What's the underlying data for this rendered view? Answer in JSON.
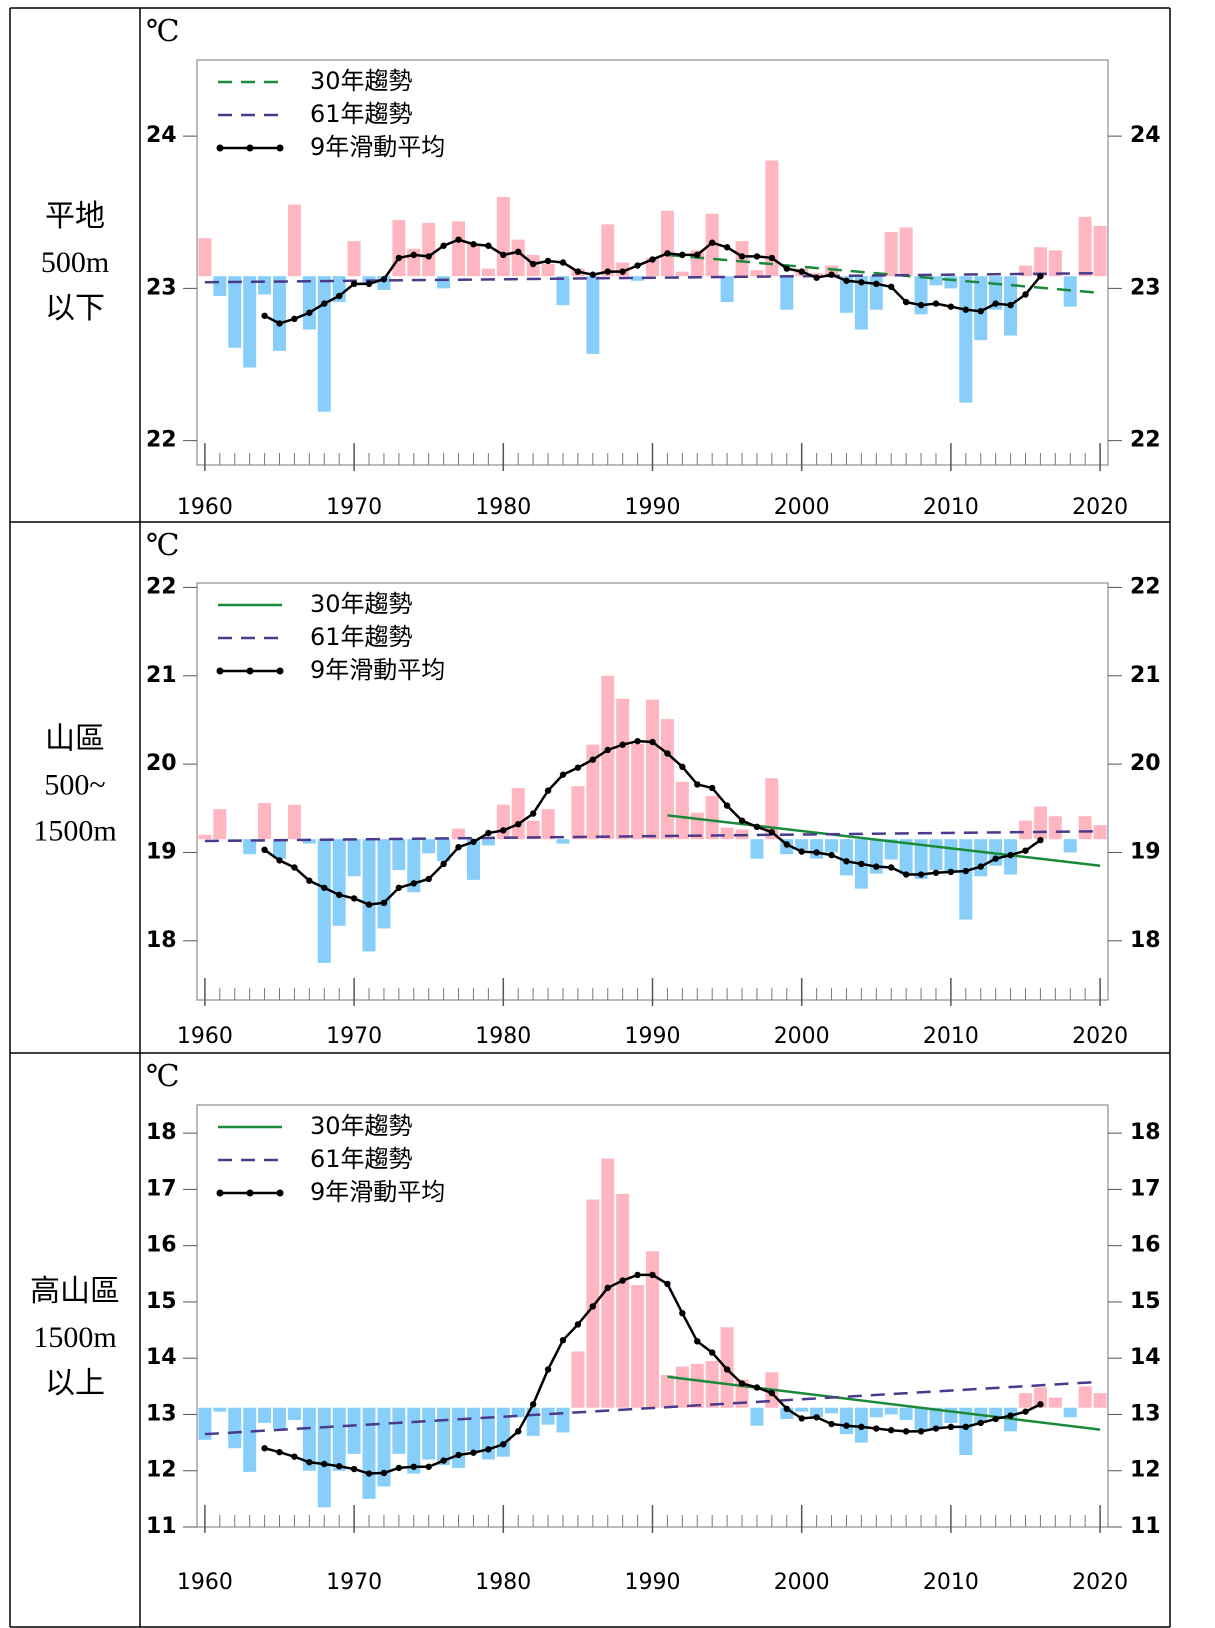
{
  "chart_data": [
    {
      "type": "bar",
      "unit": "℃",
      "row_label": [
        "平地",
        "500m",
        "以下"
      ],
      "x": [
        1960,
        1961,
        1962,
        1963,
        1964,
        1965,
        1966,
        1967,
        1968,
        1969,
        1970,
        1971,
        1972,
        1973,
        1974,
        1975,
        1976,
        1977,
        1978,
        1979,
        1980,
        1981,
        1982,
        1983,
        1984,
        1985,
        1986,
        1987,
        1988,
        1989,
        1990,
        1991,
        1992,
        1993,
        1994,
        1995,
        1996,
        1997,
        1998,
        1999,
        2000,
        2001,
        2002,
        2003,
        2004,
        2005,
        2006,
        2007,
        2008,
        2009,
        2010,
        2011,
        2012,
        2013,
        2014,
        2015,
        2016,
        2017,
        2018,
        2019,
        2020
      ],
      "values": [
        23.33,
        22.95,
        22.61,
        22.48,
        22.96,
        22.59,
        23.55,
        22.73,
        22.19,
        22.91,
        23.31,
        23.03,
        22.99,
        23.45,
        23.26,
        23.43,
        23.0,
        23.44,
        23.29,
        23.13,
        23.6,
        23.32,
        23.22,
        23.16,
        22.89,
        23.13,
        22.57,
        23.42,
        23.17,
        23.05,
        23.2,
        23.51,
        23.11,
        23.25,
        23.49,
        22.91,
        23.31,
        23.12,
        23.84,
        22.86,
        23.13,
        23.1,
        23.15,
        22.84,
        22.73,
        22.86,
        23.37,
        23.4,
        22.83,
        23.02,
        23.0,
        22.25,
        22.66,
        22.86,
        22.69,
        23.15,
        23.27,
        23.25,
        22.88,
        23.47,
        23.41
      ],
      "bar_base": 23.08,
      "color_above": "#ffb6c1",
      "color_below": "#87cefa",
      "xlim": [
        1959.47,
        2020.53
      ],
      "xticks": [
        1960,
        1970,
        1980,
        1990,
        2000,
        2010,
        2020
      ],
      "ylim": [
        21.84,
        24.5
      ],
      "yticks": [
        22,
        23,
        24
      ],
      "series": [
        {
          "name": "30年趨勢",
          "color": "#1a8a3a",
          "dashed": true,
          "x": [
            1991,
            2020
          ],
          "values": [
            23.22,
            22.97
          ]
        },
        {
          "name": "61年趨勢",
          "color": "#4a3a8c",
          "dashed": true,
          "x": [
            1960,
            2020
          ],
          "values": [
            23.04,
            23.1
          ]
        },
        {
          "name": "9年滑動平均",
          "color": "#000000",
          "markers": true,
          "values": [
            null,
            null,
            null,
            null,
            22.82,
            22.77,
            22.8,
            22.84,
            22.9,
            22.95,
            23.03,
            23.03,
            23.06,
            23.2,
            23.22,
            23.21,
            23.28,
            23.32,
            23.29,
            23.28,
            23.22,
            23.24,
            23.16,
            23.18,
            23.17,
            23.11,
            23.09,
            23.11,
            23.11,
            23.15,
            23.19,
            23.23,
            23.22,
            23.22,
            23.3,
            23.27,
            23.21,
            23.21,
            23.2,
            23.13,
            23.11,
            23.07,
            23.09,
            23.05,
            23.04,
            23.03,
            23.01,
            22.91,
            22.89,
            22.9,
            22.88,
            22.86,
            22.85,
            22.9,
            22.89,
            22.96,
            23.08,
            null,
            null,
            null,
            null
          ]
        }
      ]
    },
    {
      "type": "bar",
      "unit": "℃",
      "row_label": [
        "山區",
        "500~",
        "1500m"
      ],
      "x": [
        1960,
        1961,
        1962,
        1963,
        1964,
        1965,
        1966,
        1967,
        1968,
        1969,
        1970,
        1971,
        1972,
        1973,
        1974,
        1975,
        1976,
        1977,
        1978,
        1979,
        1980,
        1981,
        1982,
        1983,
        1984,
        1985,
        1986,
        1987,
        1988,
        1989,
        1990,
        1991,
        1992,
        1993,
        1994,
        1995,
        1996,
        1997,
        1998,
        1999,
        2000,
        2001,
        2002,
        2003,
        2004,
        2005,
        2006,
        2007,
        2008,
        2009,
        2010,
        2011,
        2012,
        2013,
        2014,
        2015,
        2016,
        2017,
        2018,
        2019,
        2020
      ],
      "values": [
        19.2,
        19.49,
        19.12,
        18.98,
        19.56,
        18.93,
        19.54,
        19.1,
        17.75,
        18.17,
        18.73,
        17.88,
        18.14,
        18.8,
        18.55,
        18.99,
        18.9,
        19.27,
        18.69,
        19.08,
        19.54,
        19.73,
        19.36,
        19.49,
        19.1,
        19.75,
        20.22,
        21.0,
        20.74,
        20.23,
        20.73,
        20.51,
        19.8,
        19.45,
        19.64,
        19.28,
        19.26,
        18.93,
        19.84,
        18.98,
        19.03,
        18.93,
        19.0,
        18.74,
        18.59,
        18.76,
        18.92,
        18.75,
        18.7,
        18.8,
        18.78,
        18.24,
        18.73,
        18.85,
        18.75,
        19.36,
        19.52,
        19.41,
        19.0,
        19.41,
        19.31
      ],
      "bar_base": 19.15,
      "color_above": "#ffb6c1",
      "color_below": "#87cefa",
      "xlim": [
        1959.47,
        2020.53
      ],
      "xticks": [
        1960,
        1970,
        1980,
        1990,
        2000,
        2010,
        2020
      ],
      "ylim": [
        17.33,
        22.05
      ],
      "yticks": [
        18,
        19,
        20,
        21,
        22
      ],
      "series": [
        {
          "name": "30年趨勢",
          "color": "#1a8a3a",
          "dashed": false,
          "x": [
            1991,
            2020
          ],
          "values": [
            19.42,
            18.85
          ]
        },
        {
          "name": "61年趨勢",
          "color": "#4a3a8c",
          "dashed": true,
          "x": [
            1960,
            2020
          ],
          "values": [
            19.13,
            19.24
          ]
        },
        {
          "name": "9年滑動平均",
          "color": "#000000",
          "markers": true,
          "values": [
            null,
            null,
            null,
            null,
            19.03,
            18.91,
            18.83,
            18.68,
            18.6,
            18.52,
            18.48,
            18.41,
            18.43,
            18.6,
            18.65,
            18.7,
            18.87,
            19.06,
            19.12,
            19.22,
            19.25,
            19.32,
            19.44,
            19.7,
            19.88,
            19.96,
            20.05,
            20.16,
            20.22,
            20.26,
            20.25,
            20.12,
            19.97,
            19.77,
            19.73,
            19.53,
            19.36,
            19.29,
            19.23,
            19.09,
            19.01,
            19.0,
            18.97,
            18.9,
            18.87,
            18.84,
            18.83,
            18.75,
            18.75,
            18.77,
            18.78,
            18.79,
            18.84,
            18.93,
            18.97,
            19.02,
            19.14,
            null,
            null,
            null,
            null
          ]
        }
      ]
    },
    {
      "type": "bar",
      "unit": "℃",
      "row_label": [
        "高山區",
        "1500m",
        "以上"
      ],
      "x": [
        1960,
        1961,
        1962,
        1963,
        1964,
        1965,
        1966,
        1967,
        1968,
        1969,
        1970,
        1971,
        1972,
        1973,
        1974,
        1975,
        1976,
        1977,
        1978,
        1979,
        1980,
        1981,
        1982,
        1983,
        1984,
        1985,
        1986,
        1987,
        1988,
        1989,
        1990,
        1991,
        1992,
        1993,
        1994,
        1995,
        1996,
        1997,
        1998,
        1999,
        2000,
        2001,
        2002,
        2003,
        2004,
        2005,
        2006,
        2007,
        2008,
        2009,
        2010,
        2011,
        2012,
        2013,
        2014,
        2015,
        2016,
        2017,
        2018,
        2019,
        2020
      ],
      "values": [
        12.55,
        13.05,
        12.4,
        11.98,
        12.85,
        12.75,
        12.9,
        12.0,
        11.35,
        12.0,
        12.3,
        11.5,
        11.72,
        12.3,
        11.95,
        12.2,
        12.1,
        12.05,
        12.35,
        12.2,
        12.25,
        12.95,
        12.62,
        12.82,
        12.68,
        14.12,
        16.82,
        17.55,
        16.92,
        15.3,
        15.9,
        13.7,
        13.85,
        13.9,
        13.95,
        14.55,
        13.62,
        12.8,
        13.75,
        12.92,
        13.05,
        12.95,
        13.02,
        12.65,
        12.5,
        12.95,
        13.0,
        12.9,
        12.7,
        12.75,
        12.85,
        12.28,
        12.85,
        12.95,
        12.7,
        13.38,
        13.48,
        13.3,
        12.95,
        13.5,
        13.38
      ],
      "bar_base": 13.12,
      "color_above": "#ffb6c1",
      "color_below": "#87cefa",
      "xlim": [
        1959.47,
        2020.53
      ],
      "xticks": [
        1960,
        1970,
        1980,
        1990,
        2000,
        2010,
        2020
      ],
      "ylim": [
        11,
        18.5
      ],
      "yticks": [
        11,
        12,
        13,
        14,
        15,
        16,
        17,
        18
      ],
      "series": [
        {
          "name": "30年趨勢",
          "color": "#1a8a3a",
          "dashed": false,
          "x": [
            1991,
            2020
          ],
          "values": [
            13.67,
            12.73
          ]
        },
        {
          "name": "61年趨勢",
          "color": "#4a3a8c",
          "dashed": true,
          "x": [
            1960,
            2020
          ],
          "values": [
            12.65,
            13.58
          ]
        },
        {
          "name": "9年滑動平均",
          "color": "#000000",
          "markers": true,
          "values": [
            null,
            null,
            null,
            null,
            12.4,
            12.33,
            12.25,
            12.15,
            12.12,
            12.08,
            12.03,
            11.95,
            11.96,
            12.05,
            12.07,
            12.07,
            12.18,
            12.28,
            12.32,
            12.38,
            12.47,
            12.7,
            13.18,
            13.8,
            14.32,
            14.6,
            14.92,
            15.25,
            15.38,
            15.48,
            15.48,
            15.32,
            14.8,
            14.3,
            14.1,
            13.8,
            13.55,
            13.48,
            13.38,
            13.1,
            12.93,
            12.95,
            12.83,
            12.8,
            12.78,
            12.75,
            12.72,
            12.7,
            12.7,
            12.75,
            12.78,
            12.78,
            12.85,
            12.92,
            12.98,
            13.05,
            13.18,
            null,
            null,
            null,
            null
          ]
        }
      ]
    }
  ]
}
